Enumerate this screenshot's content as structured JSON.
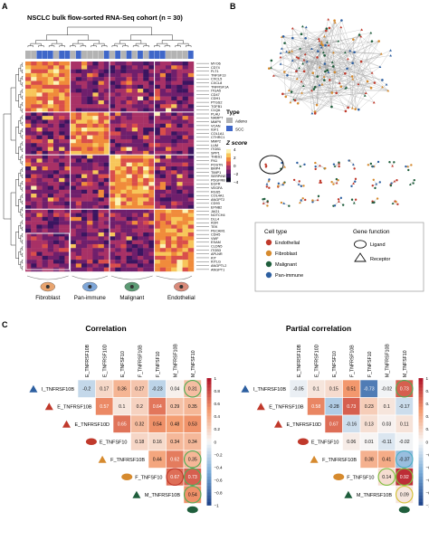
{
  "panel_a": {
    "label": "A",
    "title": "NSCLC bulk flow-sorted RNA-Seq cohort (n = 30)",
    "legend_type": {
      "title": "Type",
      "items": [
        {
          "label": "Adeno",
          "color": "#b3b3b3"
        },
        {
          "label": "SCC",
          "color": "#3f67c9"
        }
      ]
    },
    "legend_z": {
      "title": "Z score",
      "ticks": [
        "4",
        "2",
        "0",
        "−2",
        "−4"
      ]
    },
    "groups": [
      "Fibroblast",
      "Pan-immune",
      "Malignant",
      "Endothelial"
    ],
    "gene_labels": [
      "MYO6",
      "CD74",
      "FLT1",
      "TNFSF13",
      "CXCL5",
      "CXCL8",
      "TNFRSF1A",
      "ITGA5",
      "CD47",
      "CDH1",
      "PTGS2",
      "TGFB1",
      "C1QA",
      "PLAU",
      "NAMPT",
      "MMP9",
      "VCAN",
      "IGF1",
      "COL1A1",
      "CTHRC1",
      "MMP2",
      "LUM",
      "ITGB1",
      "SPP1",
      "THBS1",
      "FN1",
      "POSTN",
      "BMP4",
      "TIMP1",
      "SERPINE1",
      "PDGFRB",
      "EGFR",
      "VEGFA",
      "RGS5",
      "COL4A1",
      "ANGPT2",
      "CD93",
      "EFNB2",
      "JAG1",
      "NOTCH4",
      "DLL4",
      "KDR",
      "TEK",
      "PECAM1",
      "CDH5",
      "VWF",
      "ESAM",
      "CLDN5",
      "ITGB3",
      "APLNR",
      "KIT",
      "KITLG",
      "ANGPTL2",
      "ANGPT1"
    ]
  },
  "panel_b": {
    "label": "B",
    "legend_cell": {
      "title": "Cell type",
      "items": [
        {
          "label": "Endothelial",
          "color": "#c0392b"
        },
        {
          "label": "Fibroblast",
          "color": "#d68a2e"
        },
        {
          "label": "Malignant",
          "color": "#1f5e3c"
        },
        {
          "label": "Pan-immune",
          "color": "#2d5fa0"
        }
      ]
    },
    "legend_gene": {
      "title": "Gene function",
      "items": [
        {
          "label": "Ligand"
        },
        {
          "label": "Receptor"
        }
      ]
    }
  },
  "panel_c": {
    "label": "C",
    "left_title": "Correlation",
    "right_title": "Partial correlation",
    "genes": [
      "I_TNFRSF10B",
      "E_TNFRSF10B",
      "E_TNFRSF10D",
      "E_TNFSF10",
      "F_TNFRSF10B",
      "F_TNFSF10",
      "M_TNFRSF10B"
    ],
    "col_genes": [
      "E_TNFRSF10B",
      "E_TNFRSF10D",
      "E_TNFSF10",
      "F_TNFRSF10B",
      "F_TNFSF10",
      "M_TNFRSF10B",
      "M_TNFSF10"
    ],
    "row_colors": [
      "#2d5fa0",
      "#c0392b",
      "#c0392b",
      "#c0392b",
      "#d68a2e",
      "#d68a2e",
      "#1f5e3c"
    ],
    "bottom_icon_color": "#1f5e3c",
    "correlation": [
      [
        -0.2,
        0.17,
        0.36,
        0.27,
        -0.23,
        0.04,
        0.31
      ],
      [
        0.57,
        0.1,
        0.2,
        0.64,
        0.29,
        0.35
      ],
      [
        0.65,
        0.32,
        0.54,
        0.48,
        0.53
      ],
      [
        0.18,
        0.16,
        0.34,
        0.34
      ],
      [
        0.44,
        0.62,
        0.35
      ],
      [
        0.67,
        0.73
      ],
      [
        0.54
      ]
    ],
    "correlation_labels": [
      [
        "-0.2",
        "0.17",
        "0.36",
        "0.27",
        "-0.23",
        "0.04",
        "0.31"
      ],
      [
        "0.57",
        "0.1",
        "0.2",
        "0.64",
        "0.29",
        "0.35"
      ],
      [
        "0.65",
        "0.32",
        "0.54",
        "0.48",
        "0.53"
      ],
      [
        "0.18",
        "0.16",
        "0.34",
        "0.34"
      ],
      [
        "0.44",
        "0.62",
        "0.35"
      ],
      [
        "0.67",
        "0.73"
      ],
      [
        "0.54"
      ]
    ],
    "partial": [
      [
        -0.05,
        0.1,
        0.15,
        0.51,
        -0.73,
        -0.02,
        0.73
      ],
      [
        0.58,
        -0.28,
        0.73,
        0.23,
        0.1,
        -0.17
      ],
      [
        0.67,
        -0.16,
        0.13,
        0.03,
        0.11
      ],
      [
        0.06,
        0.01,
        -0.11,
        -0.02
      ],
      [
        0.38,
        0.41,
        -0.37
      ],
      [
        0.14,
        0.92
      ],
      [
        0.09
      ]
    ],
    "partial_labels": [
      [
        "-0.05",
        "0.1",
        "0.15",
        "0.51",
        "-0.73",
        "-0.02",
        "0.73"
      ],
      [
        "0.58",
        "-0.28",
        "0.73",
        "0.23",
        "0.1",
        "-0.17"
      ],
      [
        "0.67",
        "-0.16",
        "0.13",
        "0.03",
        "0.11"
      ],
      [
        "0.06",
        "0.01",
        "-0.11",
        "-0.02"
      ],
      [
        "0.38",
        "0.41",
        "-0.37"
      ],
      [
        "0.14",
        "0.92"
      ],
      [
        "0.09"
      ]
    ],
    "scale_ticks": [
      "1",
      "0.8",
      "0.6",
      "0.4",
      "0.2",
      "0",
      "−0.2",
      "−0.4",
      "−0.6",
      "−0.8",
      "−1"
    ],
    "circled_correlation": [
      [
        0,
        6
      ],
      [
        4,
        6
      ],
      [
        5,
        6
      ],
      [
        6,
        6
      ],
      [
        5,
        5
      ]
    ],
    "circled_partial": [
      [
        0,
        6
      ],
      [
        4,
        6
      ],
      [
        5,
        6
      ],
      [
        6,
        6
      ],
      [
        5,
        5
      ]
    ]
  }
}
